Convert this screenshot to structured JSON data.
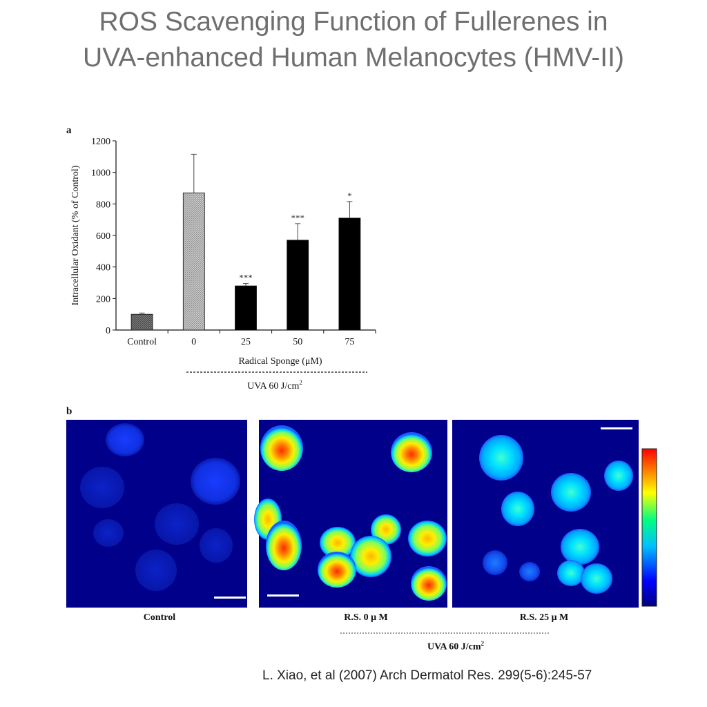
{
  "title": {
    "line1": "ROS Scavenging Function of Fullerenes in",
    "line2": "UVA-enhanced Human Melanocytes (HMV-II)"
  },
  "panel_a": {
    "label": "a",
    "group_label": "UVA 60 J/cm",
    "group_label_sup": "2"
  },
  "panel_b": {
    "label": "b",
    "captions": [
      "Control",
      "R.S. 0 μ M",
      "R.S. 25 μ M"
    ],
    "group_label": "UVA 60 J/cm",
    "group_label_sup": "2",
    "colormap": [
      "#00007f",
      "#0000ff",
      "#00bfff",
      "#00ff80",
      "#ffff00",
      "#ff8000",
      "#ff0000"
    ],
    "background_color": "#00008a"
  },
  "citation": "L. Xiao, et al (2007) Arch Dermatol Res. 299(5-6):245-57",
  "chart_data": {
    "type": "bar",
    "categories": [
      "Control",
      "0",
      "25",
      "50",
      "75"
    ],
    "values": [
      100,
      870,
      280,
      570,
      710
    ],
    "error_bars": [
      8,
      245,
      15,
      105,
      105
    ],
    "significance": [
      "",
      "",
      "***",
      "***",
      "*"
    ],
    "bar_colors": [
      "#6a6a6a",
      "#bdbdbd",
      "#000000",
      "#000000",
      "#000000"
    ],
    "xlabel": "Radical Sponge (μM)",
    "ylabel": "Intracellular Oxidant (% of Control)",
    "ylim": [
      0,
      1200
    ],
    "yticks": [
      0,
      200,
      400,
      600,
      800,
      1000,
      1200
    ],
    "grid": false
  }
}
